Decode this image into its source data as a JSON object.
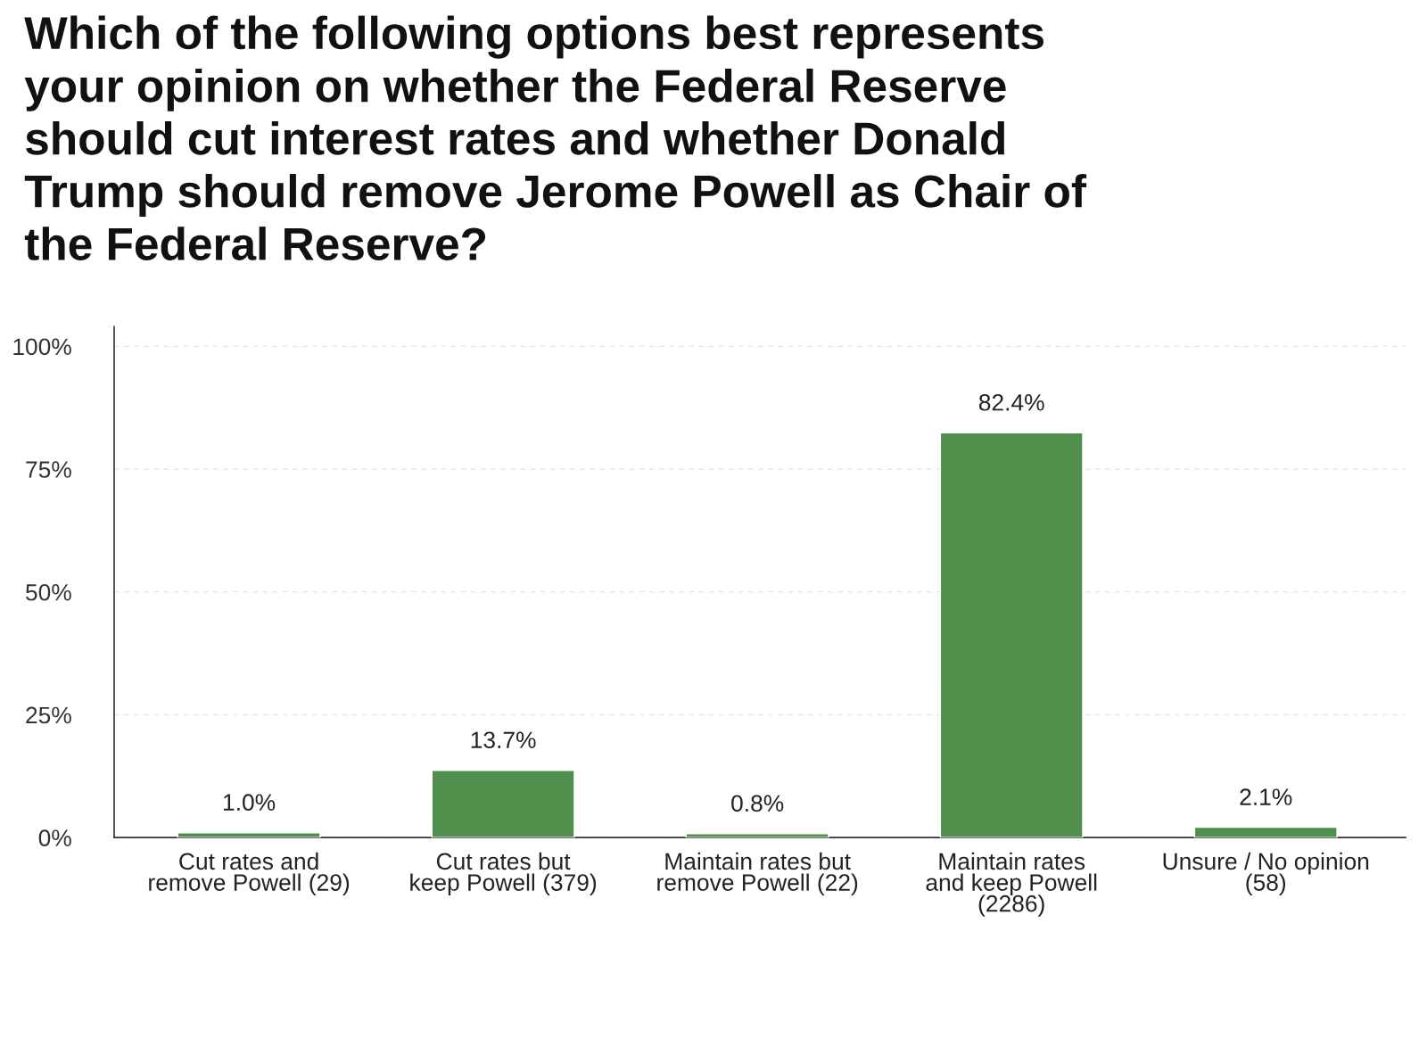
{
  "chart_data": {
    "type": "bar",
    "title": "Which of the following options best represents\nyour opinion on whether the Federal Reserve\nshould cut interest rates and whether Donald\nTrump should remove Jerome Powell as Chair of\nthe Federal Reserve?",
    "categories": [
      "Cut rates and\nremove Powell (29)",
      "Cut rates but\nkeep Powell (379)",
      "Maintain rates but\nremove Powell (22)",
      "Maintain rates\nand keep Powell\n(2286)",
      "Unsure / No opinion\n(58)"
    ],
    "values": [
      1.0,
      13.7,
      0.8,
      82.4,
      2.1
    ],
    "value_labels": [
      "1.0%",
      "13.7%",
      "0.8%",
      "82.4%",
      "2.1%"
    ],
    "color": "#4f8f4b",
    "ylim": [
      0,
      104
    ],
    "yticks": [
      {
        "value": 0,
        "label": "0%"
      },
      {
        "value": 25,
        "label": "25%"
      },
      {
        "value": 50,
        "label": "50%"
      },
      {
        "value": 75,
        "label": "75%"
      },
      {
        "value": 100,
        "label": "100%"
      }
    ],
    "grid": "y"
  }
}
